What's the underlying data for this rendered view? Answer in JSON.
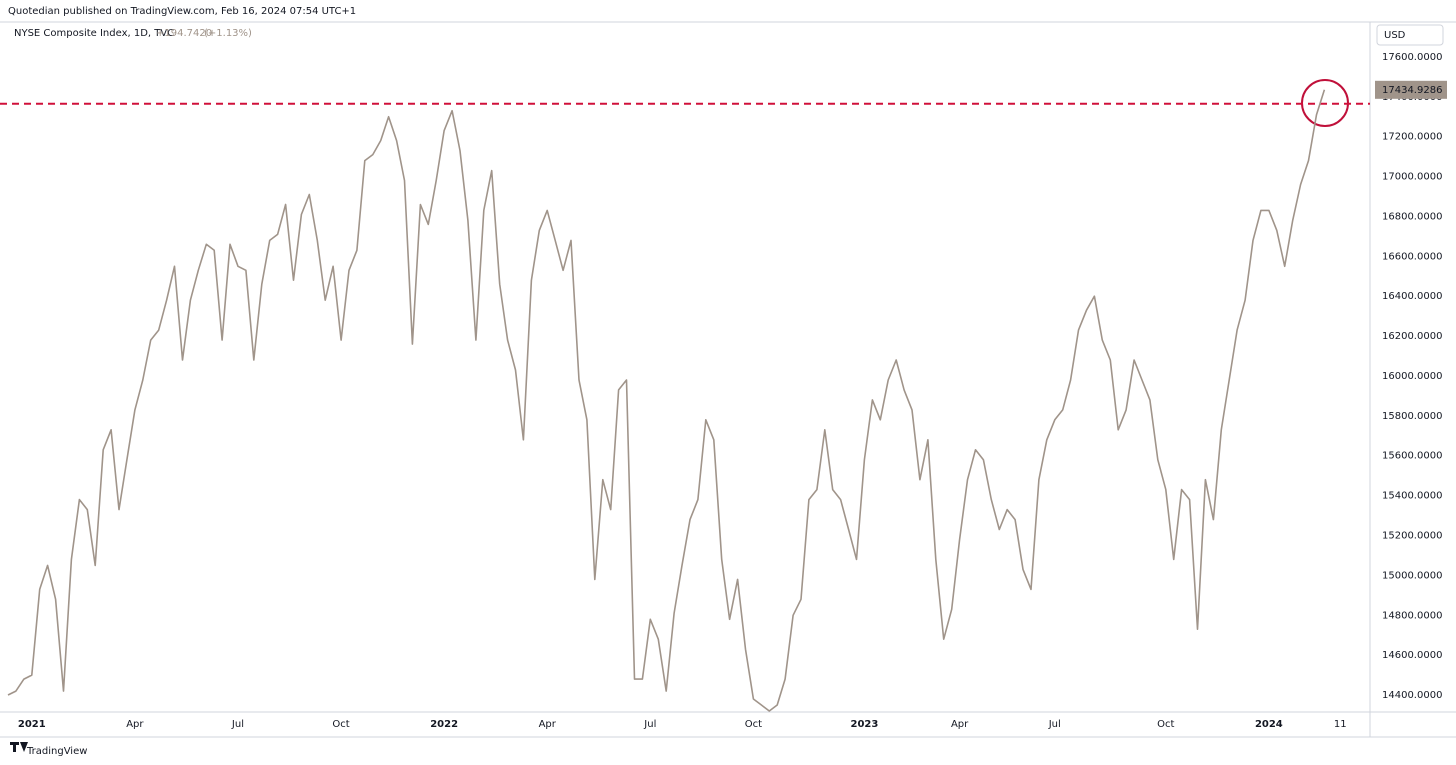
{
  "header": "Quotedian published on TradingView.com, Feb 16, 2024 07:54 UTC+1",
  "footer": "TradingView",
  "chart_data": {
    "type": "line",
    "currency": "USD",
    "change": "+194.7420",
    "change_pct": "(+1.13%)",
    "categories": [
      null,
      null,
      null,
      "2021",
      null,
      null,
      null,
      null,
      null,
      null,
      null,
      null,
      null,
      null,
      null,
      null,
      "Apr",
      null,
      null,
      null,
      null,
      null,
      null,
      null,
      null,
      null,
      null,
      null,
      null,
      "Jul",
      null,
      null,
      null,
      null,
      null,
      null,
      null,
      null,
      null,
      null,
      null,
      null,
      "Oct",
      null,
      null,
      null,
      null,
      null,
      null,
      null,
      null,
      null,
      null,
      null,
      null,
      "2022",
      null,
      null,
      null,
      null,
      null,
      null,
      null,
      null,
      null,
      null,
      null,
      null,
      "Apr",
      null,
      null,
      null,
      null,
      null,
      null,
      null,
      null,
      null,
      null,
      null,
      null,
      "Jul",
      null,
      null,
      null,
      null,
      null,
      null,
      null,
      null,
      null,
      null,
      null,
      null,
      "Oct",
      null,
      null,
      null,
      null,
      null,
      null,
      null,
      null,
      null,
      null,
      null,
      null,
      null,
      "2023",
      null,
      null,
      null,
      null,
      null,
      null,
      null,
      null,
      null,
      null,
      null,
      "Apr",
      null,
      null,
      null,
      null,
      null,
      null,
      null,
      null,
      null,
      null,
      null,
      "Jul",
      null,
      null,
      null,
      null,
      null,
      null,
      null,
      null,
      null,
      null,
      null,
      null,
      null,
      "Oct",
      null,
      null,
      null,
      null,
      null,
      null,
      null,
      null,
      null,
      null,
      null,
      null,
      "2024",
      null,
      null,
      null,
      null,
      null,
      null,
      null,
      null,
      "11",
      null
    ],
    "series": [
      {
        "name": "NYSE Composite Index, 1D, TVC",
        "color": "#a0948a",
        "values": [
          14400,
          14420,
          14480,
          14500,
          14930,
          15050,
          14880,
          14420,
          15080,
          15380,
          15330,
          15050,
          15630,
          15730,
          15330,
          15580,
          15830,
          15980,
          16180,
          16230,
          16380,
          16550,
          16080,
          16380,
          16530,
          16660,
          16630,
          16180,
          16660,
          16550,
          16530,
          16080,
          16460,
          16680,
          16710,
          16860,
          16480,
          16810,
          16910,
          16680,
          16380,
          16550,
          16180,
          16530,
          16630,
          17080,
          17110,
          17180,
          17300,
          17180,
          16980,
          16160,
          16860,
          16760,
          16980,
          17230,
          17330,
          17130,
          16780,
          16180,
          16830,
          17030,
          16460,
          16180,
          16030,
          15680,
          16480,
          16730,
          16830,
          16680,
          16530,
          16680,
          15980,
          15780,
          14980,
          15480,
          15330,
          15930,
          15980,
          14480,
          14480,
          14780,
          14680,
          14420,
          14810,
          15050,
          15280,
          15380,
          15780,
          15680,
          15080,
          14780,
          14980,
          14630,
          14380,
          14350,
          14320,
          14350,
          14480,
          14800,
          14880,
          15380,
          15430,
          15730,
          15430,
          15380,
          15230,
          15080,
          15580,
          15880,
          15780,
          15980,
          16080,
          15930,
          15830,
          15480,
          15680,
          15080,
          14680,
          14830,
          15180,
          15480,
          15630,
          15580,
          15380,
          15230,
          15330,
          15280,
          15030,
          14930,
          15480,
          15680,
          15780,
          15830,
          15980,
          16230,
          16330,
          16400,
          16180,
          16080,
          15730,
          15830,
          16080,
          15980,
          15880,
          15580,
          15430,
          15080,
          15430,
          15380,
          14730,
          15480,
          15280,
          15730,
          15980,
          16230,
          16380,
          16680,
          16830,
          16830,
          16730,
          16550,
          16780,
          16960,
          17080,
          17310,
          17434.9286,
          null,
          null,
          null
        ]
      }
    ],
    "ylim": [
      14315,
      17800
    ],
    "yticks": [
      {
        "value": 14400,
        "label": "14400.0000"
      },
      {
        "value": 14600,
        "label": "14600.0000"
      },
      {
        "value": 14800,
        "label": "14800.0000"
      },
      {
        "value": 15000,
        "label": "15000.0000"
      },
      {
        "value": 15200,
        "label": "15200.0000"
      },
      {
        "value": 15400,
        "label": "15400.0000"
      },
      {
        "value": 15600,
        "label": "15600.0000"
      },
      {
        "value": 15800,
        "label": "15800.0000"
      },
      {
        "value": 16000,
        "label": "16000.0000"
      },
      {
        "value": 16200,
        "label": "16200.0000"
      },
      {
        "value": 16400,
        "label": "16400.0000"
      },
      {
        "value": 16600,
        "label": "16600.0000"
      },
      {
        "value": 16800,
        "label": "16800.0000"
      },
      {
        "value": 17000,
        "label": "17000.0000"
      },
      {
        "value": 17200,
        "label": "17200.0000"
      },
      {
        "value": 17400,
        "label": "17400.0000"
      },
      {
        "value": 17600,
        "label": "17600.0000"
      }
    ],
    "reference_line": {
      "value": 17365,
      "color": "#d0103a"
    },
    "grid": false
  }
}
